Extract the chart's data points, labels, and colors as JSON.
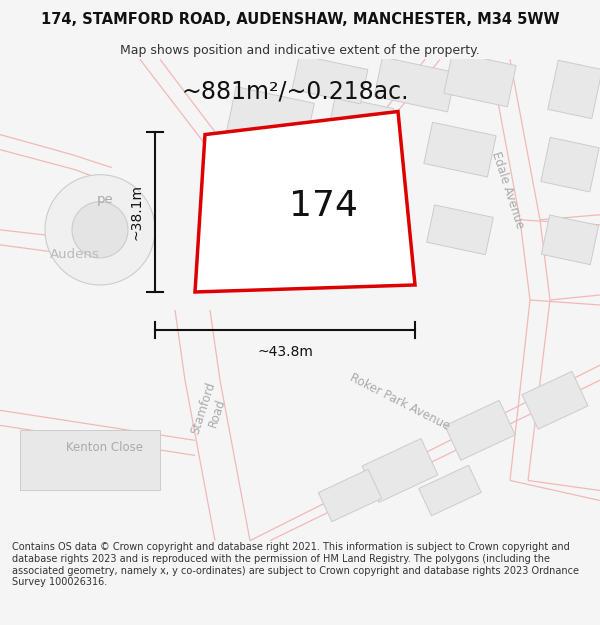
{
  "title": "174, STAMFORD ROAD, AUDENSHAW, MANCHESTER, M34 5WW",
  "subtitle": "Map shows position and indicative extent of the property.",
  "area_label": "~881m²/~0.218ac.",
  "property_number": "174",
  "dim_width": "~43.8m",
  "dim_height": "~38.1m",
  "footer": "Contains OS data © Crown copyright and database right 2021. This information is subject to Crown copyright and database rights 2023 and is reproduced with the permission of HM Land Registry. The polygons (including the associated geometry, namely x, y co-ordinates) are subject to Crown copyright and database rights 2023 Ordnance Survey 100026316.",
  "bg_color": "#f5f5f5",
  "map_bg": "#ffffff",
  "road_color": "#f2b8b8",
  "building_fill": "#e8e8e8",
  "building_edge": "#cccccc",
  "roundabout_fill": "#eeeeee",
  "roundabout_edge": "#cccccc",
  "property_stroke": "#dd0000",
  "property_fill": "white",
  "dim_color": "#111111",
  "road_label_color": "#aaaaaa",
  "title_fontsize": 10.5,
  "subtitle_fontsize": 9,
  "footer_fontsize": 7.0,
  "area_fontsize": 17,
  "number_fontsize": 26,
  "dim_fontsize": 10,
  "road_label_fontsize": 8.5
}
